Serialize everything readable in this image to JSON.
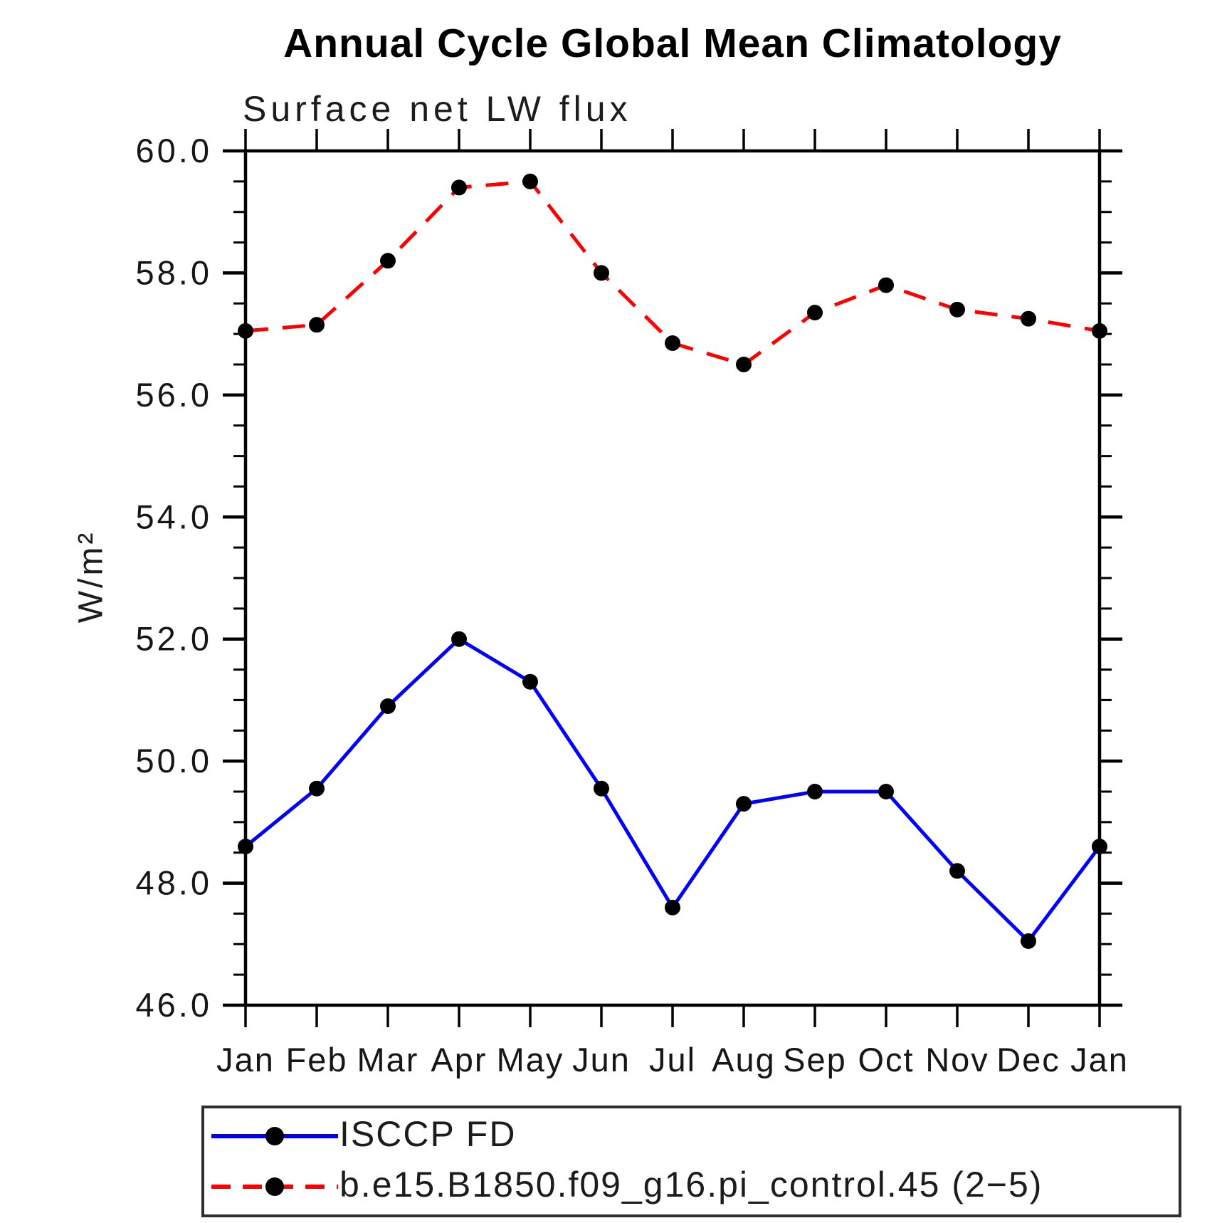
{
  "header": {
    "title": "Annual Cycle Global Mean Climatology"
  },
  "chart_data": {
    "type": "line",
    "title": "Annual Cycle Global Mean Climatology",
    "subtitle": "Surface net LW flux",
    "ylabel": "W/m²",
    "xlabel": "",
    "categories": [
      "Jan",
      "Feb",
      "Mar",
      "Apr",
      "May",
      "Jun",
      "Jul",
      "Aug",
      "Sep",
      "Oct",
      "Nov",
      "Dec",
      "Jan"
    ],
    "ylim": [
      46.0,
      60.0
    ],
    "ytick_step": 2.0,
    "minor_tick_step": 0.5,
    "ytick_labels": [
      "46.0",
      "48.0",
      "50.0",
      "52.0",
      "54.0",
      "56.0",
      "58.0",
      "60.0"
    ],
    "grid": false,
    "legend_position": "bottom-left-box",
    "axis_color": "#000000",
    "series": [
      {
        "name": "ISCCP FD",
        "color": "#0000ff",
        "line_style": "solid",
        "marker": "filled-circle",
        "marker_color": "#000000",
        "values": [
          48.6,
          49.55,
          50.9,
          52.0,
          51.3,
          49.55,
          47.6,
          49.3,
          49.5,
          49.5,
          48.2,
          47.05,
          48.6
        ]
      },
      {
        "name": "b.e15.B1850.f09_g16.pi_control.45 (2−5)",
        "color": "#ff0000",
        "line_style": "dashed",
        "marker": "filled-circle",
        "marker_color": "#000000",
        "values": [
          57.05,
          57.15,
          58.2,
          59.4,
          59.5,
          58.0,
          56.85,
          56.5,
          57.35,
          57.8,
          57.4,
          57.25,
          57.05
        ]
      }
    ]
  }
}
